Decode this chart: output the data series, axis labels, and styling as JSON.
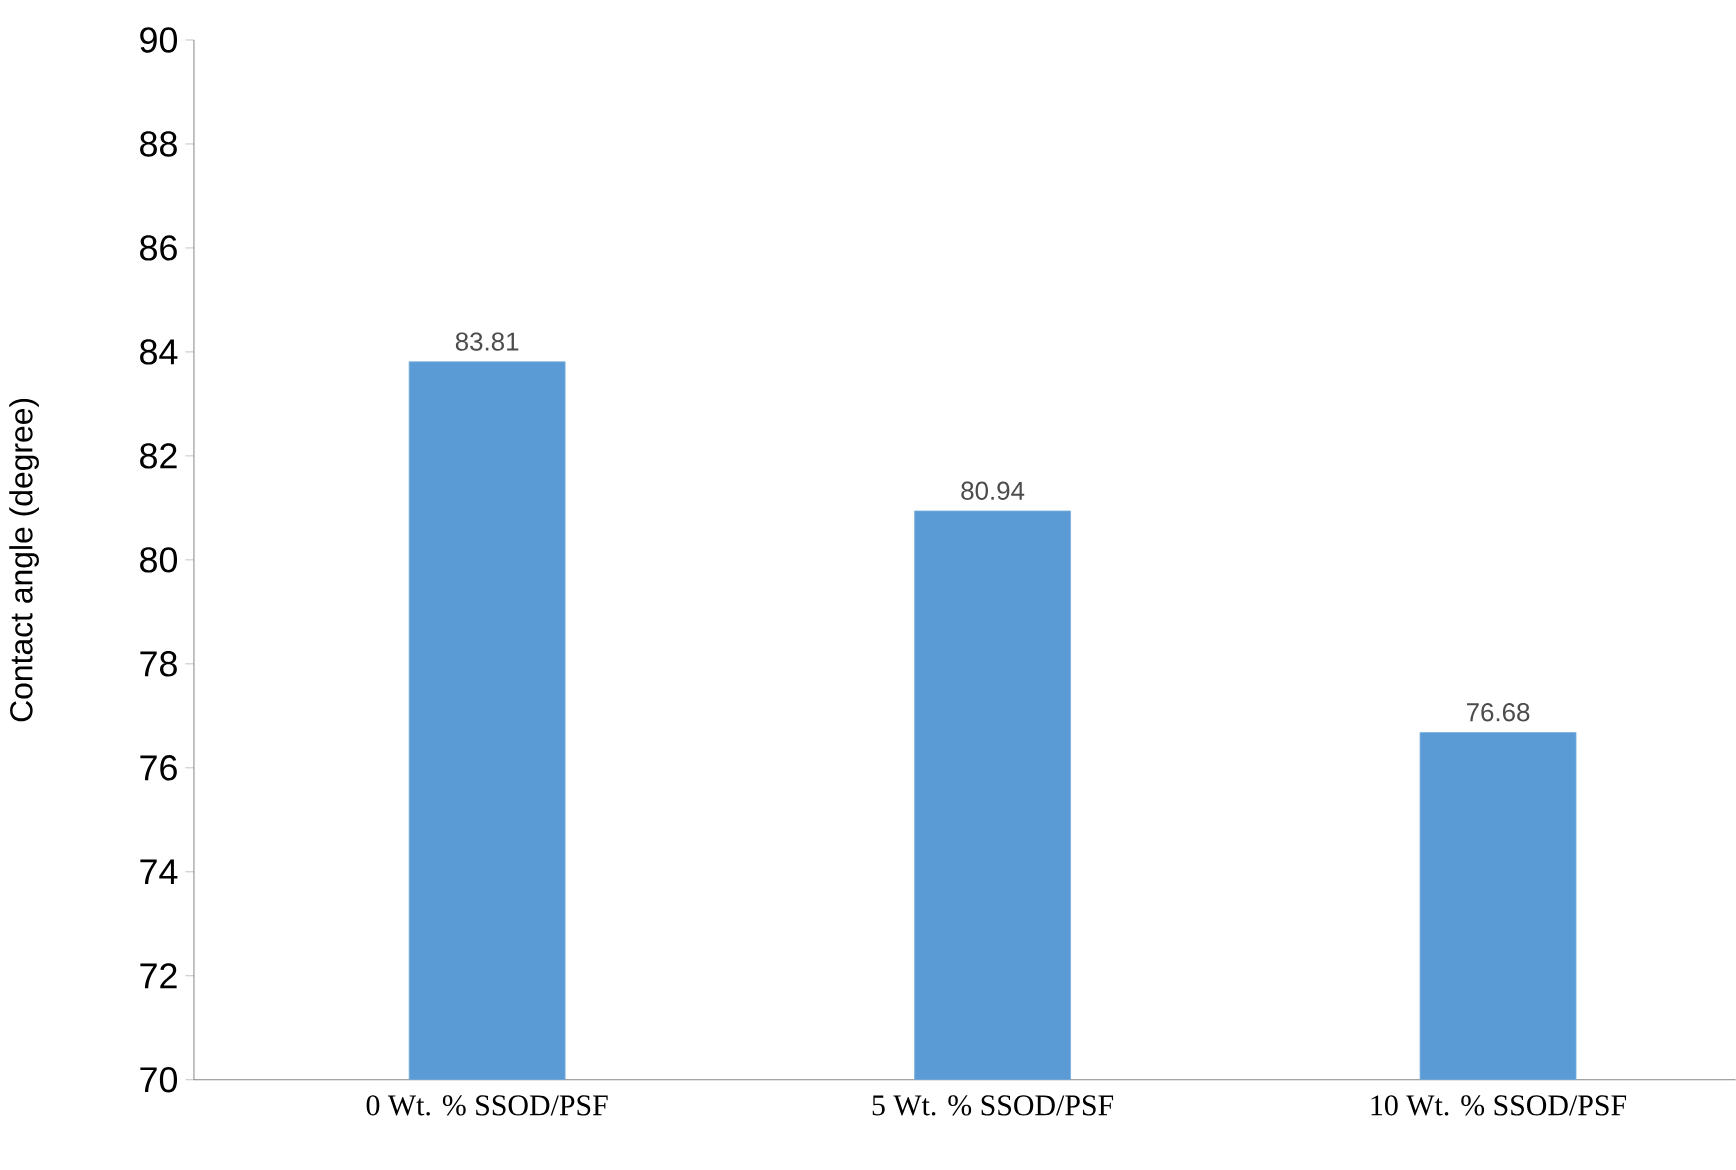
{
  "chart_data": {
    "type": "bar",
    "ylabel": "Contact angle (degree)",
    "categories": [
      "0 Wt. % SSOD/PSF",
      "5 Wt. % SSOD/PSF",
      "10 Wt. % SSOD/PSF"
    ],
    "values": [
      83.81,
      80.94,
      76.68
    ],
    "color": "#5b9bd5",
    "ylim": [
      70,
      90
    ],
    "yticks": [
      70,
      72,
      74,
      76,
      78,
      80,
      82,
      84,
      86,
      88,
      90
    ],
    "data_labels": true
  }
}
